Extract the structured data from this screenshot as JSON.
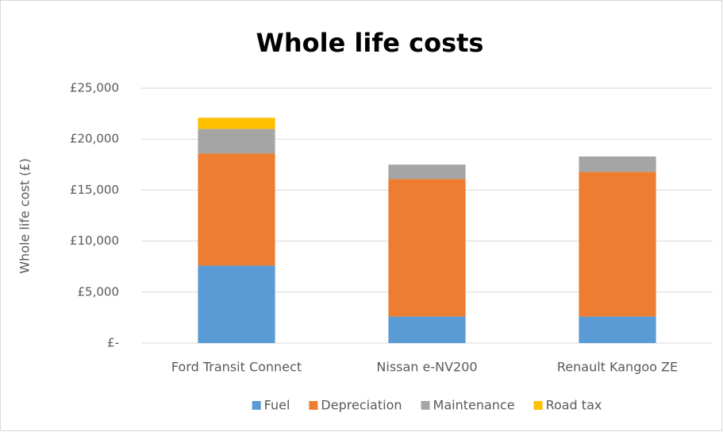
{
  "chart_data": {
    "type": "stacked_bar",
    "title": "Whole life costs",
    "y_label": "Whole life cost (£)",
    "categories": [
      "Ford Transit Connect",
      "Nissan e-NV200",
      "Renault Kangoo ZE"
    ],
    "series": [
      {
        "name": "Fuel",
        "color": "#5b9bd5",
        "values": [
          7600,
          2600,
          2600
        ]
      },
      {
        "name": "Depreciation",
        "color": "#ed7d31",
        "values": [
          11000,
          13500,
          14200
        ]
      },
      {
        "name": "Maintenance",
        "color": "#a5a5a5",
        "values": [
          2400,
          1400,
          1500
        ]
      },
      {
        "name": "Road tax",
        "color": "#ffc000",
        "values": [
          1100,
          0,
          0
        ]
      }
    ],
    "ylim": [
      0,
      25000
    ],
    "yticks": [
      {
        "value": 0,
        "label": "£-"
      },
      {
        "value": 5000,
        "label": "£5,000"
      },
      {
        "value": 10000,
        "label": "£10,000"
      },
      {
        "value": 15000,
        "label": "£15,000"
      },
      {
        "value": 20000,
        "label": "£20,000"
      },
      {
        "value": 25000,
        "label": "£25,000"
      }
    ],
    "grid": true,
    "legend": "bottom"
  }
}
